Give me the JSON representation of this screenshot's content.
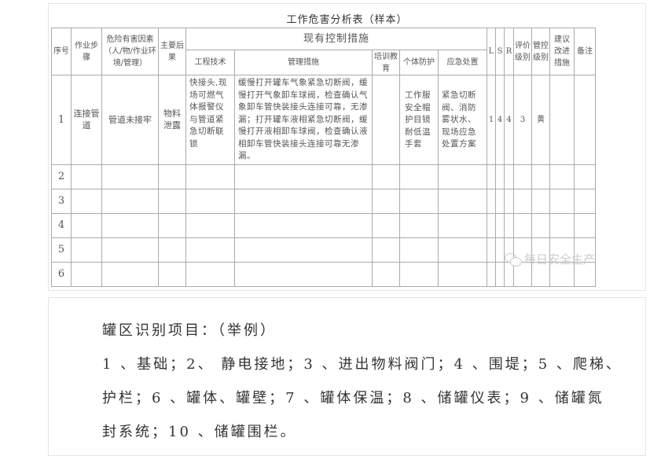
{
  "table_title": "工作危害分析表（样本）",
  "headers": {
    "seq": "序号",
    "step": "作业步骤",
    "hazard": "危险有害因素（人/物/作业环境/管理）",
    "consequence": "主要后果",
    "controls": "现有控制措施",
    "engineering": "工程技术",
    "management": "管理措施",
    "training": "培训教育",
    "ppe": "个体防护",
    "emergency": "应急处置",
    "L": "L",
    "S": "S",
    "R": "R",
    "eval_level": "评价级别",
    "control_level": "管控级别",
    "improve": "建议改进措施",
    "remarks": "备注"
  },
  "rows": [
    {
      "seq": "1",
      "step": "连接管道",
      "hazard": "管道未接牢",
      "consequence": "物料泄露",
      "engineering": "快接头,现场可燃气体报警仪与管道紧急切断联锁",
      "management": "缓慢打开罐车气象紧急切断阀，缓慢打开气象卸车球阀，检查确认气象卸车管快装接头连接可靠，无渗漏；打开罐车液相紧急切断阀，缓慢打开液相卸车球阀，检查确认液相卸车管快装接头连接可靠无渗漏。",
      "training": "",
      "ppe": "工作服安全帽护目镜耐低温手套",
      "emergency": "紧急切断阀、消防雾状水、现场应急处置方案",
      "L": "1",
      "S": "4",
      "R": "4",
      "eval_level": "3",
      "control_level": "黄",
      "improve": "",
      "remarks": ""
    },
    {
      "seq": "2"
    },
    {
      "seq": "3"
    },
    {
      "seq": "4"
    },
    {
      "seq": "5"
    },
    {
      "seq": "6"
    }
  ],
  "watermark": "每日安全生产",
  "tank_section": {
    "heading": "罐区识别项目：（举例）",
    "lines": [
      "1 、基础；2、 静电接地；3 、进出物料阀门；4 、围堤；5 、爬梯、",
      "护栏；6 、罐体、罐壁；7 、罐体保温；8 、储罐仪表；9 、储罐氮",
      "封系统；10 、储罐围栏。"
    ]
  }
}
